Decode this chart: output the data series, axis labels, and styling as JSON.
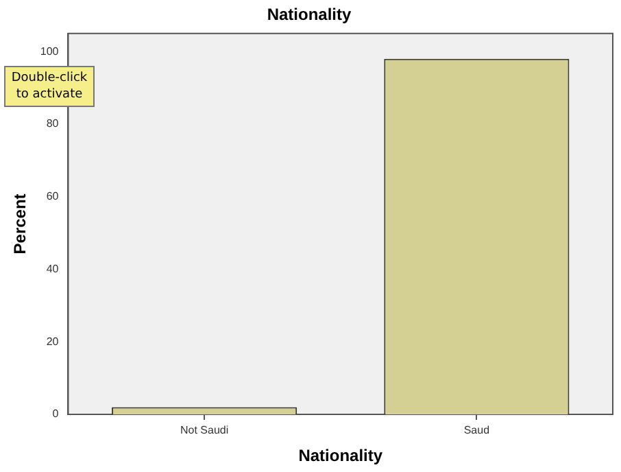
{
  "chart_data": {
    "type": "bar",
    "title": "Nationality",
    "xlabel": "Nationality",
    "ylabel": "Percent",
    "categories": [
      "Not Saudi",
      "Saud"
    ],
    "values": [
      2,
      98
    ],
    "color": "#d4cf92",
    "ylim": [
      0,
      105
    ],
    "yticks": [
      0,
      20,
      40,
      60,
      80,
      100
    ],
    "grid": false,
    "legend": false,
    "annotations": [
      "Double-click to activate"
    ]
  }
}
